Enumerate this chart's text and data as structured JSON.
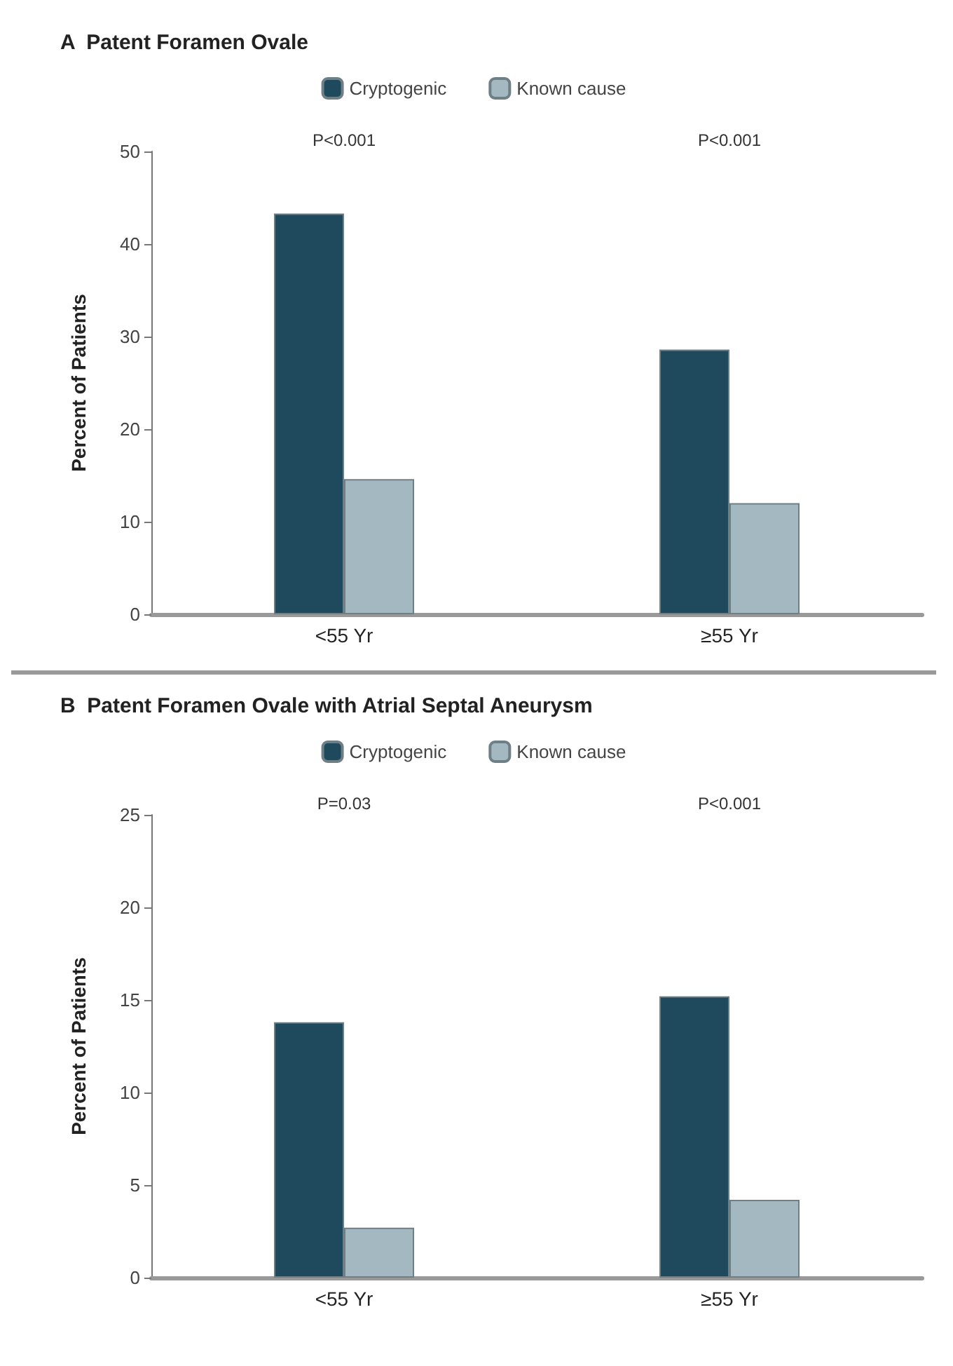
{
  "chart_data": [
    {
      "type": "bar",
      "title": "A  Patent Foramen Ovale",
      "ylabel": "Percent of Patients",
      "categories": [
        "<55 Yr",
        "≥55 Yr"
      ],
      "series": [
        {
          "name": "Cryptogenic",
          "color": "#1f4a5e",
          "values": [
            43.3,
            28.6
          ]
        },
        {
          "name": "Known cause",
          "color": "#a3b8c0",
          "values": [
            14.6,
            12.0
          ]
        }
      ],
      "ylim": [
        0,
        50
      ],
      "yticks": [
        0,
        10,
        20,
        30,
        40,
        50
      ],
      "grid": false,
      "legend": "top",
      "annotations": [
        "P<0.001",
        "P<0.001"
      ]
    },
    {
      "type": "bar",
      "title": "B  Patent Foramen Ovale with Atrial Septal Aneurysm",
      "ylabel": "Percent of Patients",
      "categories": [
        "<55 Yr",
        "≥55 Yr"
      ],
      "series": [
        {
          "name": "Cryptogenic",
          "color": "#1f4a5e",
          "values": [
            13.8,
            15.2
          ]
        },
        {
          "name": "Known cause",
          "color": "#a3b8c0",
          "values": [
            2.7,
            4.2
          ]
        }
      ],
      "ylim": [
        0,
        25
      ],
      "yticks": [
        0,
        5,
        10,
        15,
        20,
        25
      ],
      "grid": false,
      "legend": "top",
      "annotations": [
        "P=0.03",
        "P<0.001"
      ]
    }
  ]
}
